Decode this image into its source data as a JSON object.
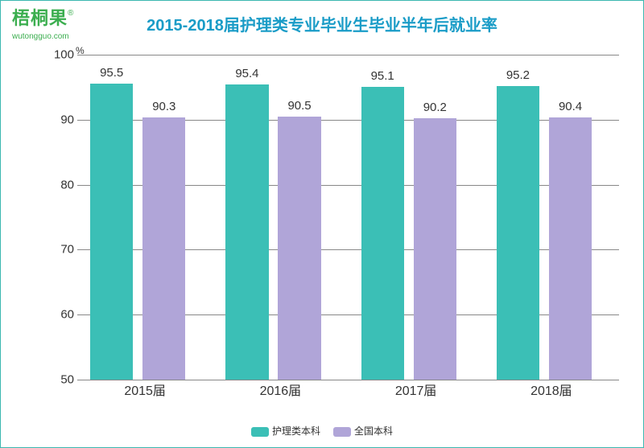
{
  "logo": {
    "cn": "梧桐果",
    "reg": "®",
    "en": "wutongguo.com"
  },
  "chart": {
    "type": "bar",
    "title": "2015-2018届护理类专业毕业生毕业半年后就业率",
    "unit": "%",
    "ylim": [
      50,
      100
    ],
    "yticks": [
      50,
      60,
      70,
      80,
      90,
      100
    ],
    "categories": [
      "2015届",
      "2016届",
      "2017届",
      "2018届"
    ],
    "series": [
      {
        "name": "护理类本科",
        "color": "#3bbfb6",
        "values": [
          95.5,
          95.4,
          95.1,
          95.2
        ]
      },
      {
        "name": "全国本科",
        "color": "#b0a5d8",
        "values": [
          90.3,
          90.5,
          90.2,
          90.4
        ]
      }
    ],
    "title_color": "#1a9cc7",
    "title_fontsize": 20,
    "label_fontsize": 15,
    "grid_color": "#888888",
    "background_color": "#ffffff",
    "bar_width_ratio": 0.36,
    "group_width_ratio": 0.88
  }
}
